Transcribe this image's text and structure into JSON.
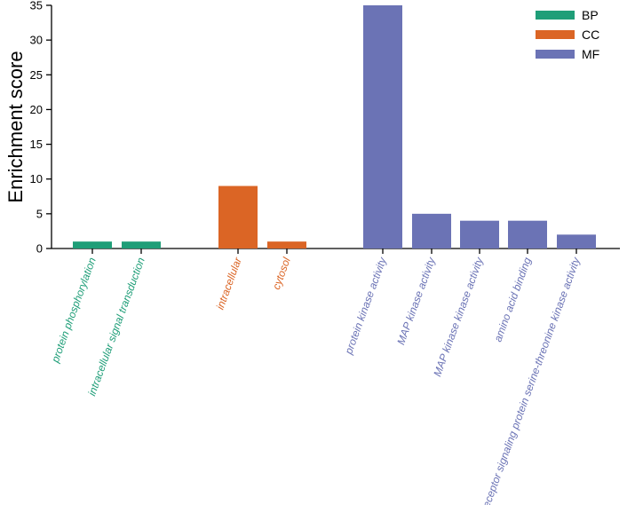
{
  "chart_data": {
    "type": "bar",
    "title": "",
    "xlabel": "",
    "ylabel": "Enrichment score",
    "ylim": [
      0,
      35
    ],
    "yticks": [
      0,
      5,
      10,
      15,
      20,
      25,
      30,
      35
    ],
    "grid": false,
    "legend_position": "top-right",
    "groups": [
      {
        "name": "BP",
        "color": "#1f9e78",
        "categories": [
          "protein phosphorylation",
          "intracellular signal transduction"
        ],
        "values": [
          1,
          1
        ]
      },
      {
        "name": "CC",
        "color": "#db6525",
        "categories": [
          "intracellular",
          "cytosol"
        ],
        "values": [
          9,
          1
        ]
      },
      {
        "name": "MF",
        "color": "#6b73b5",
        "categories": [
          "protein kinase activity",
          "MAP kinase activity",
          "MAP kinase kinase activity",
          "amino acid binding",
          "receptor signaling protein serine-threonine kinase activity"
        ],
        "values": [
          35,
          5,
          4,
          4,
          2
        ]
      }
    ]
  }
}
